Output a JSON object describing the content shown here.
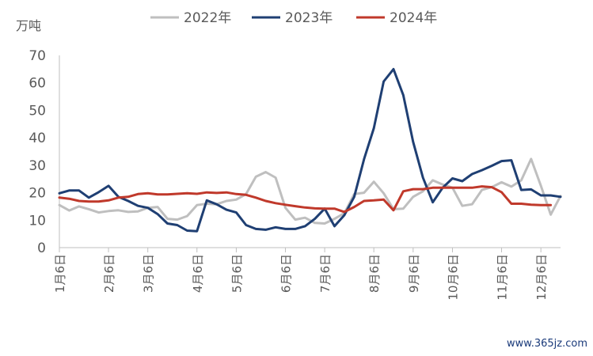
{
  "watermark": "www.365jz.com",
  "chart_data": {
    "type": "line",
    "unit_label": "万吨",
    "ylim": [
      0,
      70
    ],
    "yticks": [
      0,
      10,
      20,
      30,
      40,
      50,
      60,
      70
    ],
    "x_count": 52,
    "x_tick_labels": [
      "1月6日",
      "2月6日",
      "3月6日",
      "4月6日",
      "5月6日",
      "6月6日",
      "7月6日",
      "8月6日",
      "9月6日",
      "10月6日",
      "11月6日",
      "12月6日"
    ],
    "x_tick_indices": [
      0,
      5,
      9,
      14,
      18,
      23,
      27,
      32,
      36,
      40,
      45,
      49
    ],
    "legend_position": "top",
    "series": [
      {
        "name": "2022年",
        "color": "#bfbfbf",
        "values": [
          15.5,
          13.5,
          15,
          14,
          12.8,
          13.3,
          13.6,
          13,
          13.2,
          14.5,
          14.8,
          10.5,
          10.2,
          11.5,
          15.5,
          16,
          15.8,
          17,
          17.5,
          19.5,
          25.8,
          27.5,
          25.5,
          14.5,
          10.2,
          10.9,
          9,
          8.8,
          10.5,
          12.5,
          19.5,
          20,
          24,
          19.8,
          14,
          14.2,
          18.5,
          20.5,
          24.5,
          23,
          21.8,
          15.2,
          15.8,
          21,
          22,
          23.8,
          22.2,
          24.5,
          32.3,
          22.5,
          12,
          18.8
        ]
      },
      {
        "name": "2023年",
        "color": "#1f3f73",
        "values": [
          19.8,
          20.8,
          20.8,
          18.2,
          20.2,
          22.5,
          18.5,
          17,
          15.2,
          14.5,
          12.2,
          8.8,
          8.2,
          6.2,
          6,
          17.2,
          15.8,
          13.8,
          12.8,
          8.2,
          6.8,
          6.5,
          7.4,
          6.8,
          6.8,
          7.8,
          10.5,
          14.2,
          7.8,
          11.8,
          18.5,
          32.2,
          43.5,
          60.5,
          65,
          55.5,
          38.5,
          25.5,
          16.5,
          21.8,
          25.2,
          24.2,
          26.8,
          28.2,
          29.8,
          31.5,
          31.8,
          21,
          21.2,
          19,
          19,
          18.5
        ]
      },
      {
        "name": "2024年",
        "color": "#c0392b",
        "values": [
          18.2,
          17.8,
          17,
          16.8,
          16.8,
          17.2,
          18.2,
          18.5,
          19.5,
          19.8,
          19.4,
          19.4,
          19.6,
          19.8,
          19.6,
          20.1,
          19.9,
          20.1,
          19.5,
          19.2,
          18.2,
          17,
          16.2,
          15.6,
          15.1,
          14.6,
          14.3,
          14.2,
          14.2,
          13,
          14.8,
          17,
          17.2,
          17.5,
          13.6,
          20.5,
          21.3,
          21.3,
          21.8,
          21.8,
          21.8,
          21.8,
          21.8,
          22.3,
          22,
          20.2,
          16,
          16,
          15.6,
          15.5,
          15.5
        ]
      }
    ]
  }
}
